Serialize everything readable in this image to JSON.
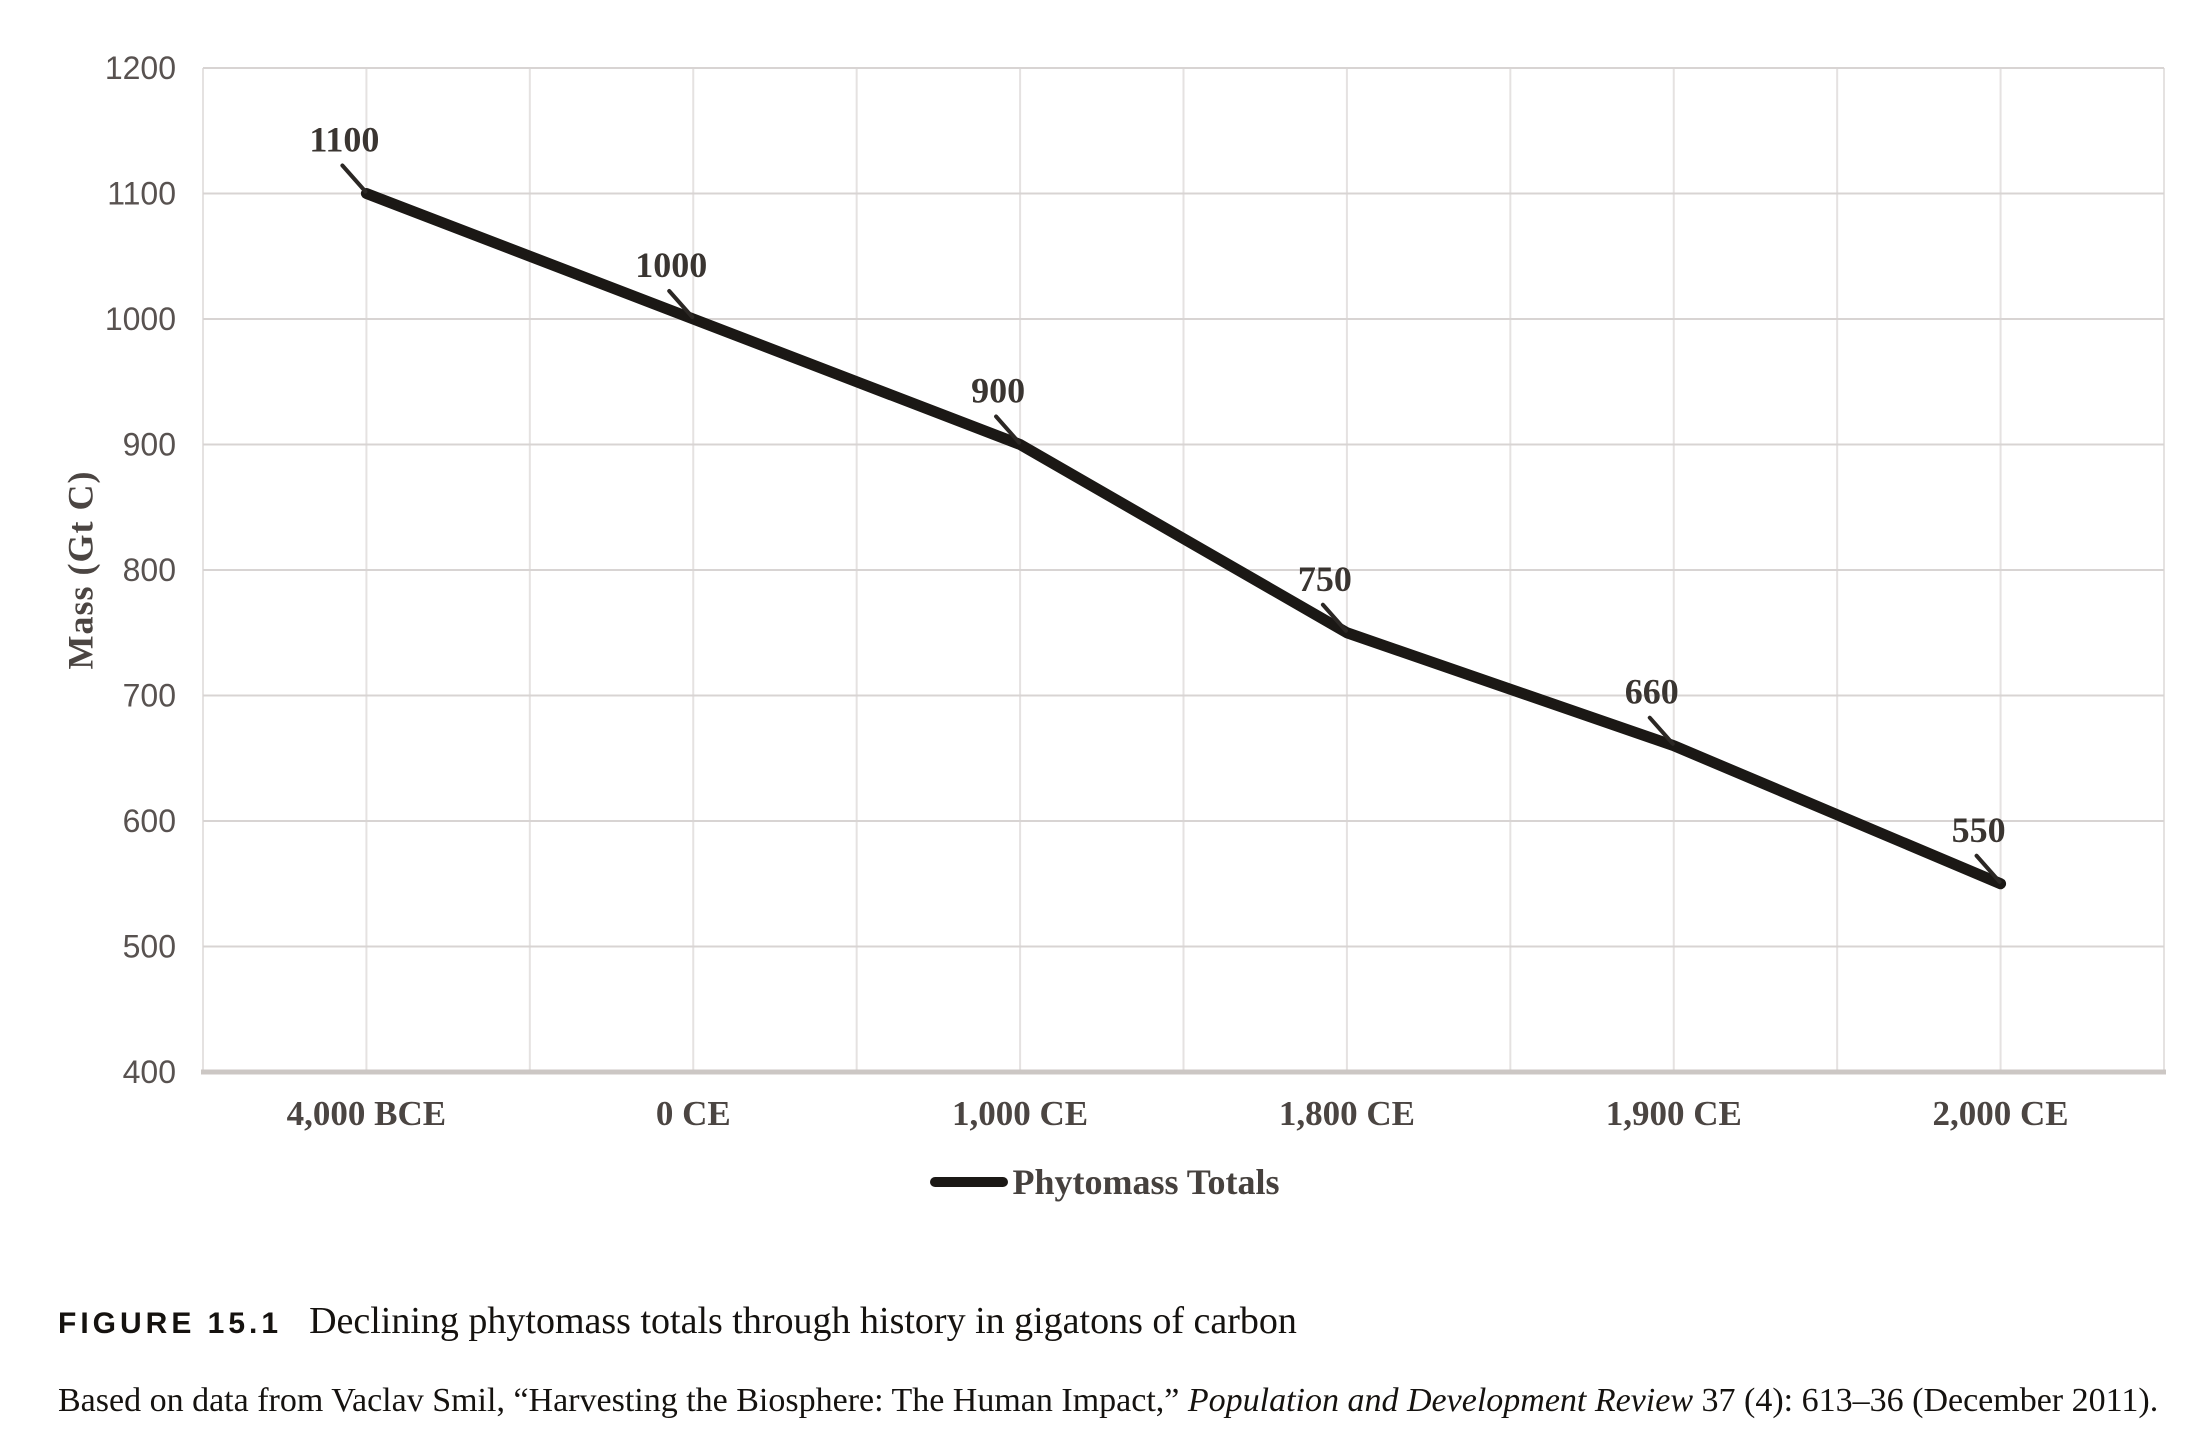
{
  "figure": {
    "label": "FIGURE 15.1",
    "caption": "Declining phytomass totals through history in gigatons of carbon",
    "source_prefix": "Based on data from Vaclav Smil, “Harvesting the Biosphere: The Human Impact,” ",
    "source_journal": "Population and Development Review",
    "source_suffix": " 37 (4): 613–36 (December 2011)."
  },
  "chart_data": {
    "type": "line",
    "title": "",
    "categories": [
      "4,000 BCE",
      "0 CE",
      "1,000 CE",
      "1,800 CE",
      "1,900 CE",
      "2,000 CE"
    ],
    "series": [
      {
        "name": "Phytomass Totals",
        "values": [
          1100,
          1000,
          900,
          750,
          660,
          550
        ]
      }
    ],
    "data_labels": [
      "1100",
      "1000",
      "900",
      "750",
      "660",
      "550"
    ],
    "xlabel": "",
    "ylabel": "Mass (Gt C)",
    "ylim": [
      400,
      1200
    ],
    "ytick_step": 100,
    "yticks": [
      "400",
      "500",
      "600",
      "700",
      "800",
      "900",
      "1000",
      "1100",
      "1200"
    ],
    "grid": true,
    "legend_position": "bottom-center",
    "colors": {
      "line": "#1b1815",
      "grid_h": "#d8d4d3",
      "grid_v": "#e5e2e1",
      "axis": "#ccc7c4",
      "ytick_text": "#585250",
      "category_text": "#4b4542",
      "data_label_text": "#3a3531"
    }
  }
}
